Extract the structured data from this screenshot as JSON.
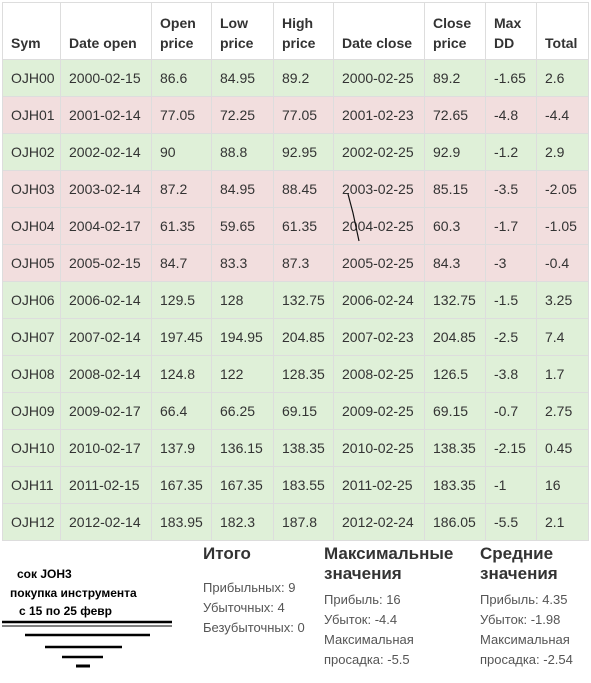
{
  "table": {
    "headers": [
      {
        "line1": "Sym",
        "line2": ""
      },
      {
        "line1": "Date open",
        "line2": ""
      },
      {
        "line1": "Open",
        "line2": "price"
      },
      {
        "line1": "Low",
        "line2": "price"
      },
      {
        "line1": "High",
        "line2": "price"
      },
      {
        "line1": "Date close",
        "line2": ""
      },
      {
        "line1": "Close",
        "line2": "price"
      },
      {
        "line1": "Max",
        "line2": "DD"
      },
      {
        "line1": "Total",
        "line2": ""
      }
    ],
    "rows": [
      {
        "status": "win",
        "cells": [
          "OJH00",
          "2000-02-15",
          "86.6",
          "84.95",
          "89.2",
          "2000-02-25",
          "89.2",
          "-1.65",
          "2.6"
        ]
      },
      {
        "status": "loss",
        "cells": [
          "OJH01",
          "2001-02-14",
          "77.05",
          "72.25",
          "77.05",
          "2001-02-23",
          "72.65",
          "-4.8",
          "-4.4"
        ]
      },
      {
        "status": "win",
        "cells": [
          "OJH02",
          "2002-02-14",
          "90",
          "88.8",
          "92.95",
          "2002-02-25",
          "92.9",
          "-1.2",
          "2.9"
        ]
      },
      {
        "status": "loss",
        "cells": [
          "OJH03",
          "2003-02-14",
          "87.2",
          "84.95",
          "88.45",
          "2003-02-25",
          "85.15",
          "-3.5",
          "-2.05"
        ]
      },
      {
        "status": "loss",
        "cells": [
          "OJH04",
          "2004-02-17",
          "61.35",
          "59.65",
          "61.35",
          "2004-02-25",
          "60.3",
          "-1.7",
          "-1.05"
        ]
      },
      {
        "status": "loss",
        "cells": [
          "OJH05",
          "2005-02-15",
          "84.7",
          "83.3",
          "87.3",
          "2005-02-25",
          "84.3",
          "-3",
          "-0.4"
        ]
      },
      {
        "status": "win",
        "cells": [
          "OJH06",
          "2006-02-14",
          "129.5",
          "128",
          "132.75",
          "2006-02-24",
          "132.75",
          "-1.5",
          "3.25"
        ]
      },
      {
        "status": "win",
        "cells": [
          "OJH07",
          "2007-02-14",
          "197.45",
          "194.95",
          "204.85",
          "2007-02-23",
          "204.85",
          "-2.5",
          "7.4"
        ]
      },
      {
        "status": "win",
        "cells": [
          "OJH08",
          "2008-02-14",
          "124.8",
          "122",
          "128.35",
          "2008-02-25",
          "126.5",
          "-3.8",
          "1.7"
        ]
      },
      {
        "status": "win",
        "cells": [
          "OJH09",
          "2009-02-17",
          "66.4",
          "66.25",
          "69.15",
          "2009-02-25",
          "69.15",
          "-0.7",
          "2.75"
        ]
      },
      {
        "status": "win",
        "cells": [
          "OJH10",
          "2010-02-17",
          "137.9",
          "136.15",
          "138.35",
          "2010-02-25",
          "138.35",
          "-2.15",
          "0.45"
        ]
      },
      {
        "status": "win",
        "cells": [
          "OJH11",
          "2011-02-15",
          "167.35",
          "167.35",
          "183.55",
          "2011-02-25",
          "183.35",
          "-1",
          "16"
        ]
      },
      {
        "status": "win",
        "cells": [
          "OJH12",
          "2012-02-14",
          "183.95",
          "182.3",
          "187.8",
          "2012-02-24",
          "186.05",
          "-5.5",
          "2.1"
        ]
      }
    ]
  },
  "colors": {
    "win_row": "#dff0d8",
    "loss_row": "#f2dede",
    "border": "#dddddd"
  },
  "annotation": {
    "line1": "сок JOH3",
    "line2": "покупка инструмента",
    "line3": "с 15 по 25 февр"
  },
  "summary": {
    "totals": {
      "title": "Итого",
      "profitable": "Прибыльных: 9",
      "losing": "Убыточных: 4",
      "breakeven": "Безубыточных: 0"
    },
    "max_values": {
      "title_line1": "Максимальные",
      "title_line2": "значения",
      "profit": "Прибыль: 16",
      "loss": "Убыток: -4.4",
      "drawdown_line1": "Максимальная",
      "drawdown_line2": "просадка: -5.5"
    },
    "avg_values": {
      "title_line1": "Средние",
      "title_line2": "значения",
      "profit": "Прибыль: 4.35",
      "loss": "Убыток: -1.98",
      "drawdown_line1": "Максимальная",
      "drawdown_line2": "просадка: -2.54"
    }
  }
}
